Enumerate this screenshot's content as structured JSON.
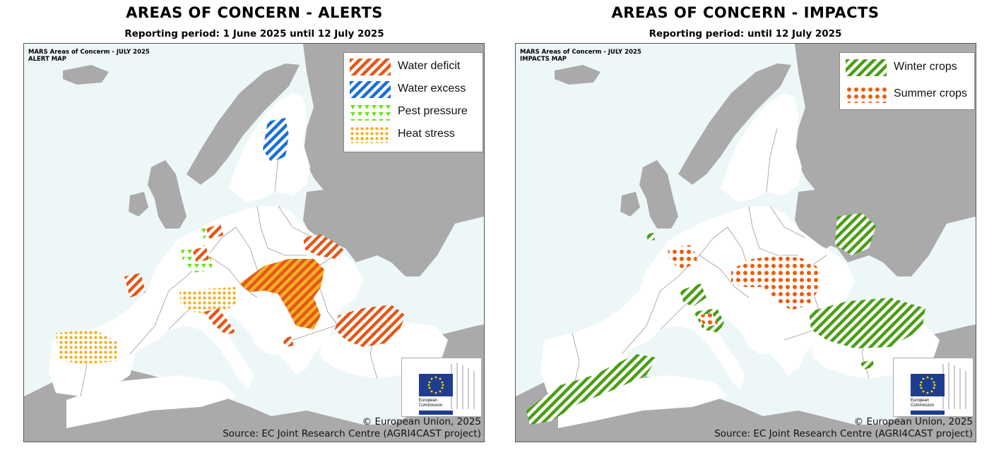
{
  "colors": {
    "sea": "#eef7f8",
    "land_focus": "#ffffff",
    "land_other": "#aaaaaa",
    "border": "#9a9a9a",
    "water_deficit": "#e4571a",
    "water_excess": "#1a6fd6",
    "pest_pressure": "#6fe11c",
    "heat_stress": "#f5b025",
    "winter_crops": "#4a9e15",
    "summer_crops": "#ec5d0d",
    "eu_flag": "#1f3d8f"
  },
  "alerts_panel": {
    "title": "AREAS OF CONCERN - ALERTS",
    "subtitle": "Reporting period: 1 June 2025 until 12 July 2025",
    "map_header_line1": "MARS Areas of Concerm - JULY 2025",
    "map_header_line2": "ALERT MAP",
    "legend": [
      {
        "label": "Water deficit",
        "pattern": "diagonal-hatch",
        "color": "water_deficit"
      },
      {
        "label": "Water excess",
        "pattern": "diagonal-hatch",
        "color": "water_excess"
      },
      {
        "label": "Pest pressure",
        "pattern": "triangles",
        "color": "pest_pressure"
      },
      {
        "label": "Heat stress",
        "pattern": "dots",
        "color": "heat_stress"
      }
    ],
    "eu_logo_text": [
      "European",
      "Commission"
    ],
    "copyright": "© European Union, 2025",
    "source": "Source: EC Joint Research Centre (AGRI4CAST project)"
  },
  "impacts_panel": {
    "title": "AREAS OF CONCERN - IMPACTS",
    "subtitle": "Reporting period: until 12 July 2025",
    "map_header_line1": "MARS Areas of Concerm - JULY 2025",
    "map_header_line2": "IMPACTS MAP",
    "legend": [
      {
        "label": "Winter crops",
        "pattern": "diagonal-hatch",
        "color": "winter_crops"
      },
      {
        "label": "Summer crops",
        "pattern": "dots",
        "color": "summer_crops"
      }
    ],
    "eu_logo_text": [
      "European",
      "Commission"
    ],
    "copyright": "© European Union, 2025",
    "source": "Source: EC Joint Research Centre (AGRI4CAST project)"
  }
}
